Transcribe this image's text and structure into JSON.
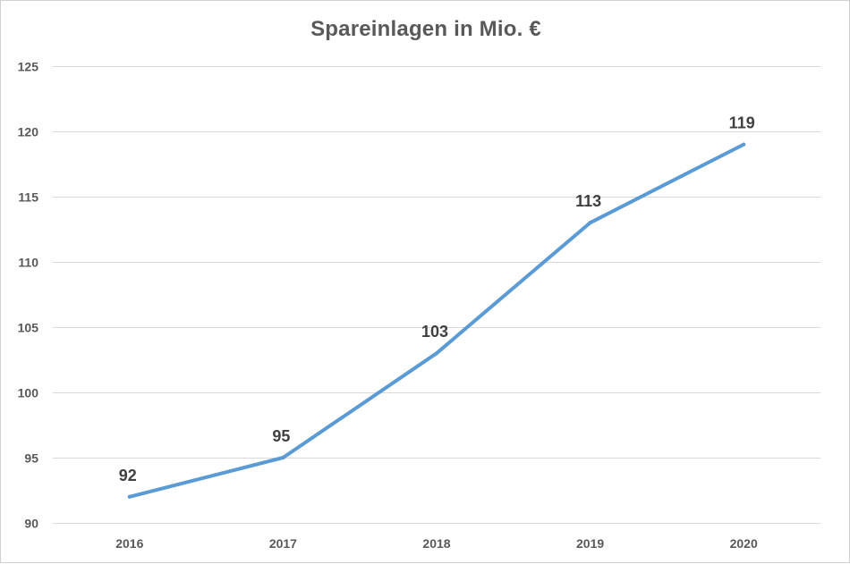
{
  "chart_data": {
    "type": "line",
    "title": "Spareinlagen in Mio. €",
    "categories": [
      "2016",
      "2017",
      "2018",
      "2019",
      "2020"
    ],
    "series": [
      {
        "values": [
          92,
          95,
          103,
          113,
          119
        ],
        "color": "#5b9bd5"
      }
    ],
    "data_labels": [
      "92",
      "95",
      "103",
      "113",
      "119"
    ],
    "y_ticks": [
      90,
      95,
      100,
      105,
      110,
      115,
      120,
      125
    ],
    "ylim": [
      90,
      125
    ],
    "grid": true,
    "legend": "none",
    "xlabel": "",
    "ylabel": ""
  }
}
